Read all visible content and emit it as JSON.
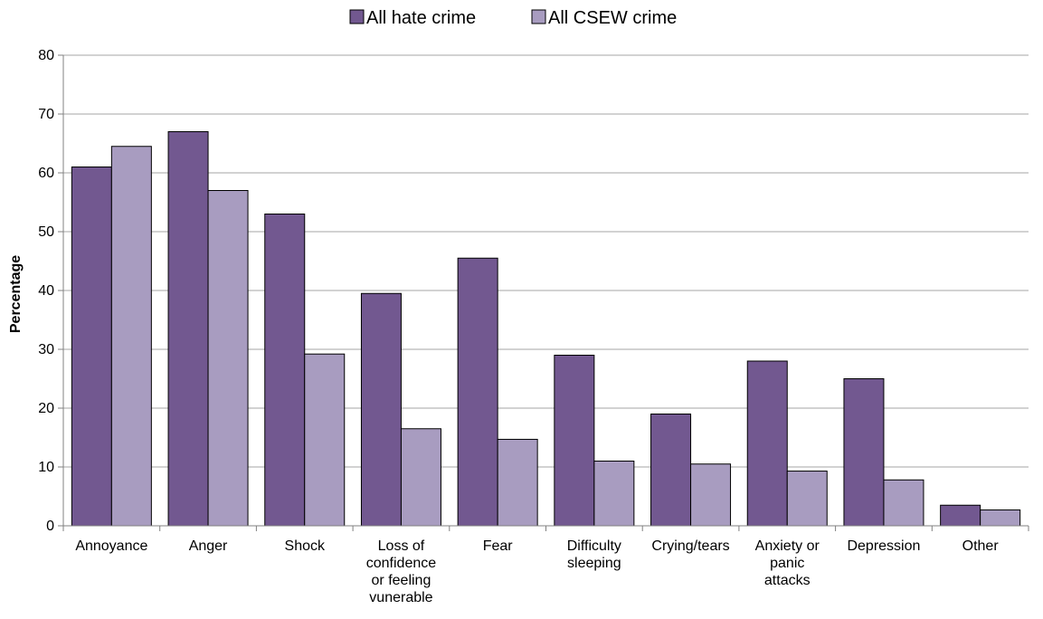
{
  "chart_data": {
    "type": "bar",
    "title": "",
    "xlabel": "",
    "ylabel": "Percentage",
    "ylim": [
      0,
      80
    ],
    "yticks": [
      0,
      10,
      20,
      30,
      40,
      50,
      60,
      70,
      80
    ],
    "grid": true,
    "legend_position": "top",
    "categories": [
      [
        "Annoyance"
      ],
      [
        "Anger"
      ],
      [
        "Shock"
      ],
      [
        "Loss of",
        "confidence",
        "or feeling",
        "vunerable"
      ],
      [
        "Fear"
      ],
      [
        "Difficulty",
        "sleeping"
      ],
      [
        "Crying/tears"
      ],
      [
        "Anxiety or",
        "panic",
        "attacks"
      ],
      [
        "Depression"
      ],
      [
        "Other"
      ]
    ],
    "series": [
      {
        "name": "All hate crime",
        "color": "#725890",
        "values": [
          61,
          67,
          53,
          39.5,
          45.5,
          29,
          19,
          28,
          25,
          3.5
        ]
      },
      {
        "name": "All CSEW crime",
        "color": "#a89cc0",
        "values": [
          64.5,
          57,
          29.2,
          16.5,
          14.7,
          11,
          10.5,
          9.3,
          7.8,
          2.7
        ]
      }
    ]
  }
}
